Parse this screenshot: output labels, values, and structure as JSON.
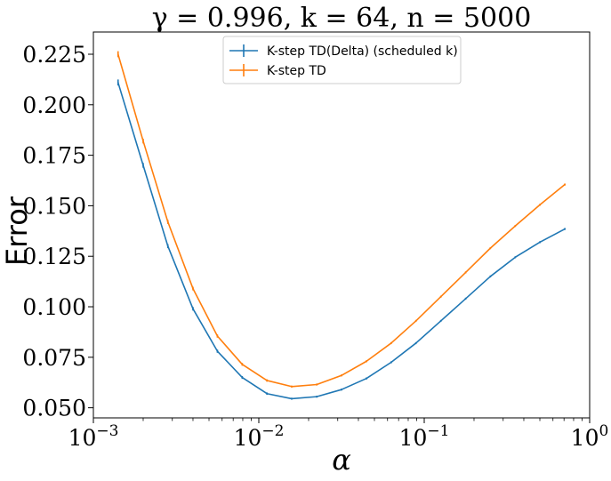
{
  "chart_data": {
    "type": "line",
    "title": "γ = 0.996, k = 64, n = 5000",
    "xlabel": "α",
    "ylabel": "Error",
    "xscale": "log",
    "xlim": [
      0.001,
      1
    ],
    "ylim": [
      0.045,
      0.236
    ],
    "grid": false,
    "legend_position": "top-center",
    "x_ticks": [
      {
        "value": 0.001,
        "base": "10",
        "exp": "−3"
      },
      {
        "value": 0.01,
        "base": "10",
        "exp": "−2"
      },
      {
        "value": 0.1,
        "base": "10",
        "exp": "−1"
      },
      {
        "value": 1,
        "base": "10",
        "exp": "0"
      }
    ],
    "y_ticks": [
      {
        "value": 0.05,
        "label": "0.050"
      },
      {
        "value": 0.075,
        "label": "0.075"
      },
      {
        "value": 0.1,
        "label": "0.100"
      },
      {
        "value": 0.125,
        "label": "0.125"
      },
      {
        "value": 0.15,
        "label": "0.150"
      },
      {
        "value": 0.175,
        "label": "0.175"
      },
      {
        "value": 0.2,
        "label": "0.200"
      },
      {
        "value": 0.225,
        "label": "0.225"
      }
    ],
    "x": [
      0.00141,
      0.002,
      0.00282,
      0.004,
      0.00562,
      0.00794,
      0.0112,
      0.0158,
      0.0224,
      0.0316,
      0.0447,
      0.0631,
      0.0891,
      0.126,
      0.178,
      0.251,
      0.355,
      0.501,
      0.708
    ],
    "series": [
      {
        "name": "K-step TD(Delta) (scheduled k)",
        "color": "#1f77b4",
        "values": [
          0.211,
          0.17,
          0.13,
          0.099,
          0.078,
          0.065,
          0.057,
          0.0545,
          0.0555,
          0.059,
          0.0645,
          0.0725,
          0.082,
          0.093,
          0.104,
          0.115,
          0.1245,
          0.132,
          0.1385
        ],
        "error": [
          0.0015,
          0.0012,
          0.001,
          0.0009,
          0.0008,
          0.0007,
          0.0006,
          0.0005,
          0.0005,
          0.0005,
          0.0005,
          0.0005,
          0.0005,
          0.0005,
          0.0005,
          0.0005,
          0.0005,
          0.0005,
          0.0005
        ]
      },
      {
        "name": "K-step TD",
        "color": "#ff7f0e",
        "values": [
          0.225,
          0.182,
          0.142,
          0.109,
          0.0855,
          0.0715,
          0.0635,
          0.0605,
          0.0615,
          0.066,
          0.073,
          0.082,
          0.093,
          0.105,
          0.117,
          0.129,
          0.14,
          0.1505,
          0.1605
        ],
        "error": [
          0.0015,
          0.0012,
          0.001,
          0.0009,
          0.0008,
          0.0007,
          0.0006,
          0.0005,
          0.0005,
          0.0005,
          0.0005,
          0.0005,
          0.0005,
          0.0005,
          0.0005,
          0.0005,
          0.0005,
          0.0005,
          0.0005
        ]
      }
    ]
  }
}
